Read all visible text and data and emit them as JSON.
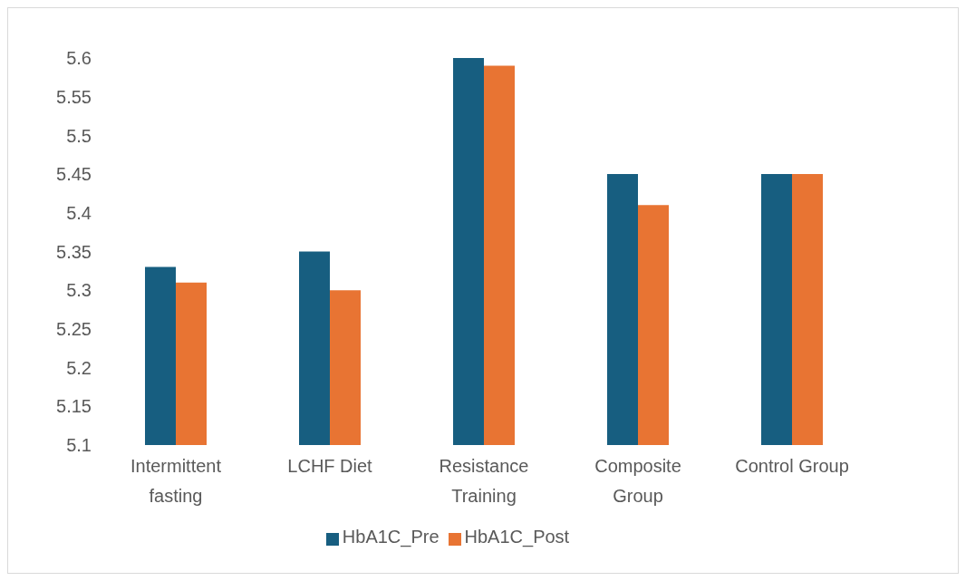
{
  "chart_data": {
    "type": "bar",
    "categories": [
      "Intermittent fasting",
      "LCHF Diet",
      "Resistance Training",
      "Composite Group",
      "Control Group"
    ],
    "series": [
      {
        "name": "HbA1C_Pre",
        "color": "#175e80",
        "values": [
          5.33,
          5.35,
          5.6,
          5.45,
          5.45
        ]
      },
      {
        "name": "HbA1C_Post",
        "color": "#e87433",
        "values": [
          5.31,
          5.3,
          5.59,
          5.41,
          5.45
        ]
      }
    ],
    "ylim": [
      5.1,
      5.6
    ],
    "yticks": [
      5.1,
      5.15,
      5.2,
      5.25,
      5.3,
      5.35,
      5.4,
      5.45,
      5.5,
      5.55,
      5.6
    ],
    "grid": false,
    "legend": "bottom"
  }
}
